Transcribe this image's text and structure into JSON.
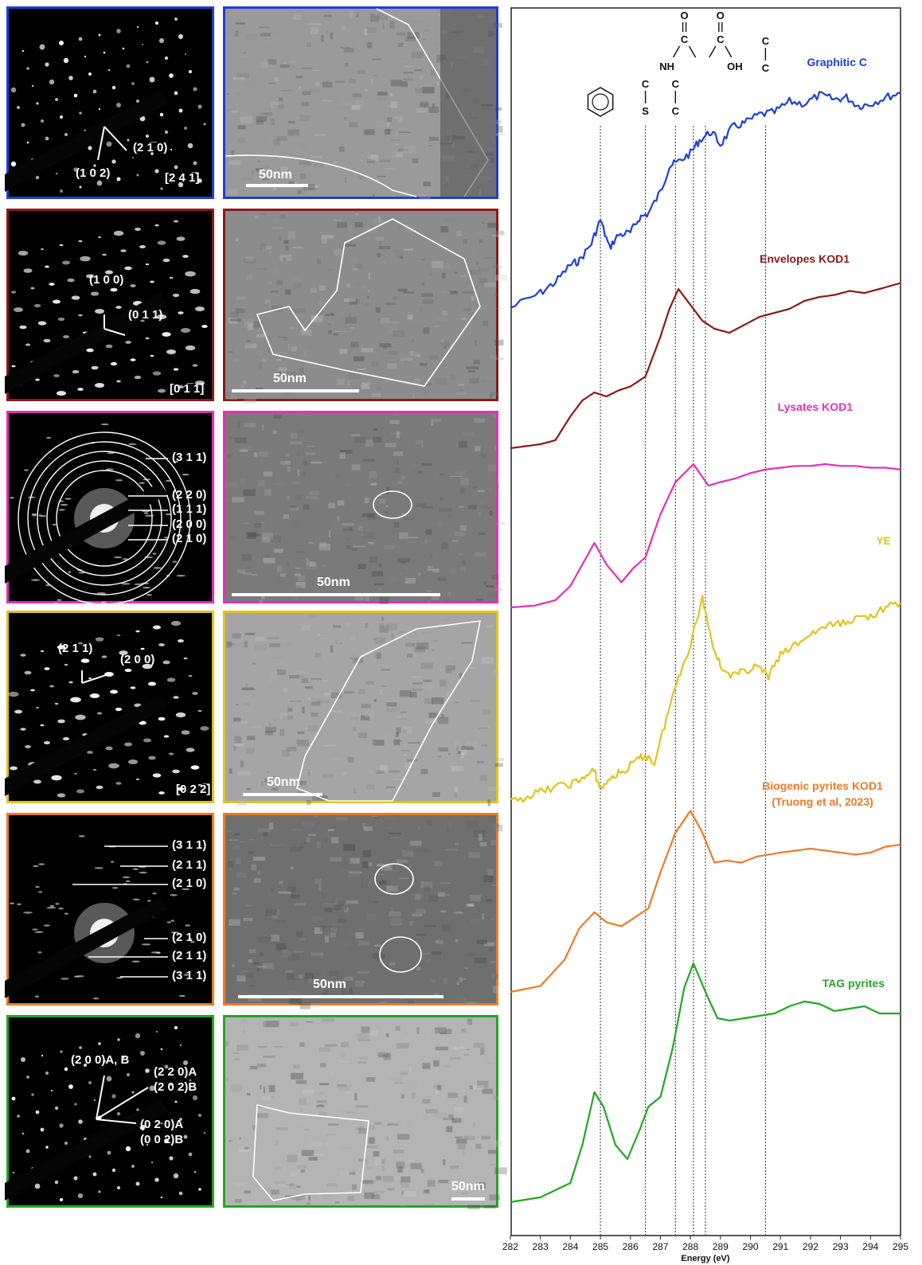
{
  "panels": [
    {
      "color": "#1f3fd6",
      "saed_labels": [
        "(2 1̅ 0)",
        "(1 0 2)",
        "[2 4 1̅]"
      ],
      "scale_label": "50nm"
    },
    {
      "color": "#8b1a1a",
      "saed_labels": [
        "(1 0 0)",
        "(0 1 1)",
        "[0 1̅ 1̅]"
      ],
      "scale_label": "50nm"
    },
    {
      "color": "#e52fb8",
      "saed_labels": [
        "(3 1 1)",
        "(2 2 0)",
        "(1 1 1)",
        "(2 0 0)",
        "(2 1 0)"
      ],
      "scale_label": "50nm"
    },
    {
      "color": "#e3c21b",
      "saed_labels": [
        "(2 1 1)",
        "(2 0 0)",
        "[0 2 2̅]"
      ],
      "scale_label": "50nm"
    },
    {
      "color": "#ee7a25",
      "saed_labels": [
        "(3 1 1)",
        "(2 1 1)",
        "(2 1 0)",
        "(2 1 0)",
        "(2 1 1)",
        "(3 1 1)"
      ],
      "scale_label": "50nm"
    },
    {
      "color": "#22a822",
      "saed_labels": [
        "(2 0 0)A, B",
        "(2 2 0)A",
        "(2 0 2)B",
        "(0 2 0)A",
        "(0 0 2)B"
      ],
      "scale_label": "50nm"
    }
  ],
  "chart_data": {
    "type": "line",
    "xlabel": "Energy (eV)",
    "xlim": [
      282,
      295
    ],
    "x_ticks": [
      282,
      283,
      284,
      285,
      286,
      287,
      288,
      289,
      290,
      291,
      292,
      293,
      294,
      295
    ],
    "y_ticks": false,
    "reference_lines": [
      285.0,
      286.5,
      287.5,
      288.1,
      288.5,
      290.5
    ],
    "functional_groups": {
      "aromatic": "benzene",
      "thio": [
        "C",
        "S"
      ],
      "amide": [
        "O",
        "C",
        "NH"
      ],
      "carboxyl": [
        "O",
        "C",
        "OH"
      ],
      "aliphatic": [
        "C",
        "C"
      ]
    },
    "series": [
      {
        "name": "Graphitic C",
        "color": "#1f3fd6",
        "x": [
          282,
          283,
          283.5,
          284,
          284.3,
          284.7,
          285.0,
          285.3,
          285.6,
          286.0,
          286.3,
          286.6,
          287.0,
          287.3,
          287.6,
          288.0,
          288.3,
          288.7,
          289.0,
          289.4,
          289.8,
          290.3,
          290.8,
          291.3,
          291.8,
          292.3,
          292.8,
          293.2,
          293.6,
          294.0,
          294.5,
          295.0
        ],
        "y": [
          -0.2,
          0.15,
          0.4,
          0.8,
          0.9,
          1.3,
          1.85,
          1.2,
          1.5,
          1.55,
          1.9,
          2.0,
          2.5,
          3.1,
          3.2,
          3.4,
          3.7,
          3.9,
          3.6,
          4.0,
          4.1,
          4.3,
          4.35,
          4.6,
          4.55,
          4.75,
          4.65,
          4.7,
          4.5,
          4.55,
          4.7,
          4.8
        ]
      },
      {
        "name": "Envelopes KOD1",
        "color": "#8b1a1a",
        "x": [
          282,
          283,
          283.5,
          284,
          284.4,
          284.8,
          285.2,
          285.6,
          286.0,
          286.5,
          287.0,
          287.3,
          287.6,
          288.0,
          288.4,
          288.8,
          289.3,
          289.8,
          290.3,
          290.8,
          291.3,
          291.8,
          292.3,
          292.8,
          293.3,
          293.8,
          294.3,
          295.0
        ],
        "y": [
          0.0,
          0.1,
          0.2,
          0.8,
          1.2,
          1.4,
          1.3,
          1.45,
          1.55,
          1.8,
          2.8,
          3.5,
          4.0,
          3.6,
          3.2,
          3.0,
          2.9,
          3.1,
          3.3,
          3.4,
          3.5,
          3.7,
          3.8,
          3.85,
          3.95,
          3.9,
          4.0,
          4.15
        ]
      },
      {
        "name": "Lysates KOD1",
        "color": "#e52fb8",
        "x": [
          282,
          282.8,
          283.5,
          284.0,
          284.4,
          284.8,
          285.2,
          285.7,
          286.1,
          286.5,
          287.0,
          287.5,
          288.1,
          288.6,
          289.0,
          289.5,
          290.0,
          290.5,
          291.0,
          291.5,
          292.0,
          292.5,
          293.0,
          293.5,
          294.0,
          294.5,
          295.0
        ],
        "y": [
          0.0,
          0.05,
          0.2,
          0.6,
          1.2,
          1.8,
          1.2,
          0.7,
          1.1,
          1.4,
          2.6,
          3.5,
          4.0,
          3.4,
          3.5,
          3.6,
          3.75,
          3.85,
          3.9,
          3.95,
          3.95,
          4.0,
          3.95,
          3.95,
          3.9,
          3.9,
          3.85
        ]
      },
      {
        "name": "YE",
        "color": "#e3c21b",
        "x": [
          282,
          282.5,
          283,
          283.5,
          284.0,
          284.4,
          284.8,
          285.0,
          285.4,
          285.8,
          286.2,
          286.5,
          286.8,
          287.2,
          287.6,
          288.0,
          288.4,
          288.7,
          289.0,
          289.4,
          289.8,
          290.2,
          290.6,
          291.0,
          291.5,
          292.0,
          292.5,
          293.0,
          293.5,
          294.0,
          294.5,
          295.0
        ],
        "y": [
          0.0,
          0.1,
          0.2,
          0.3,
          0.35,
          0.45,
          0.6,
          0.25,
          0.5,
          0.6,
          0.8,
          0.9,
          0.75,
          1.6,
          2.4,
          3.0,
          3.9,
          3.1,
          2.6,
          2.4,
          2.5,
          2.6,
          2.4,
          2.8,
          3.0,
          3.2,
          3.35,
          3.4,
          3.5,
          3.55,
          3.7,
          3.8
        ]
      },
      {
        "name": "Biogenic pyrites KOD1 (Truong et al, 2023)",
        "color": "#ee7a25",
        "x": [
          282,
          283.0,
          283.8,
          284.3,
          284.8,
          285.2,
          285.7,
          286.2,
          286.6,
          287.0,
          287.5,
          288.0,
          288.4,
          288.8,
          289.2,
          289.7,
          290.2,
          290.6,
          291.0,
          291.5,
          292.0,
          292.5,
          293.0,
          293.5,
          294.0,
          294.5,
          295.0
        ],
        "y": [
          0.0,
          0.15,
          0.8,
          1.6,
          2.0,
          1.75,
          1.65,
          1.9,
          2.1,
          3.0,
          4.0,
          4.55,
          4.0,
          3.25,
          3.3,
          3.25,
          3.4,
          3.45,
          3.5,
          3.55,
          3.6,
          3.55,
          3.5,
          3.45,
          3.5,
          3.65,
          3.7
        ]
      },
      {
        "name": "TAG pyrites",
        "color": "#22a822",
        "x": [
          282,
          283.0,
          284.0,
          284.4,
          284.8,
          285.1,
          285.5,
          285.9,
          286.3,
          286.6,
          287.0,
          287.4,
          287.8,
          288.1,
          288.5,
          288.9,
          289.3,
          289.8,
          290.3,
          290.8,
          291.3,
          291.8,
          292.3,
          292.8,
          293.3,
          293.8,
          294.3,
          295.0
        ],
        "y": [
          0.0,
          0.1,
          0.4,
          1.2,
          2.3,
          2.0,
          1.2,
          0.9,
          1.5,
          2.0,
          2.2,
          3.2,
          4.5,
          5.0,
          4.4,
          3.85,
          3.8,
          3.85,
          3.9,
          3.95,
          4.1,
          4.2,
          4.15,
          4.0,
          4.05,
          4.1,
          3.95,
          3.95
        ]
      }
    ]
  }
}
